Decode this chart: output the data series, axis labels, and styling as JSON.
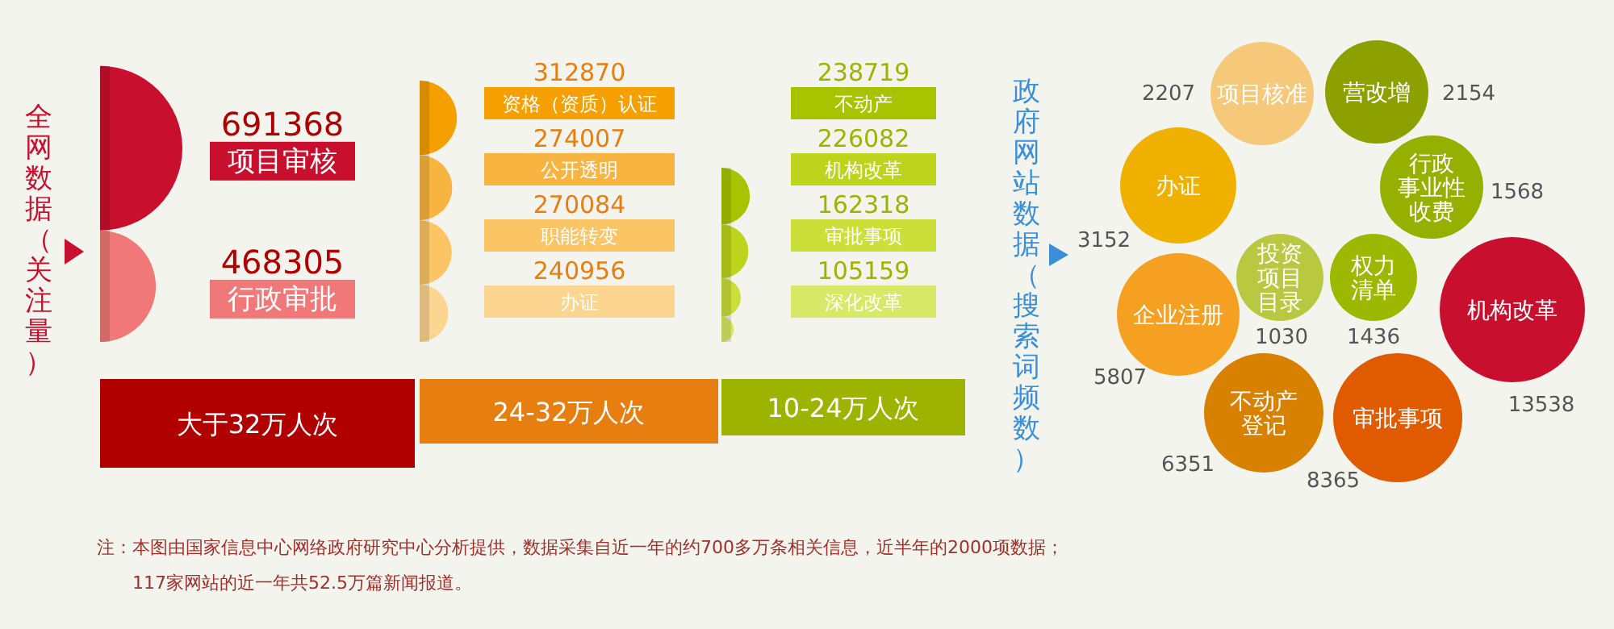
{
  "chart_data": [
    {
      "type": "other",
      "title": "全网数据（关注量）",
      "xlabel": "大于32万人次",
      "color": "#b00000",
      "categories": [
        "项目审核",
        "行政审批"
      ],
      "values": [
        691368,
        468305
      ],
      "colors": [
        "#c8102e",
        "#f07878"
      ],
      "data_labels": true
    },
    {
      "type": "other",
      "xlabel": "24-32万人次",
      "color": "#e67e10",
      "categories": [
        "资格（资质）认证",
        "公开透明",
        "职能转变",
        "办证"
      ],
      "values": [
        312870,
        274007,
        270084,
        240956
      ],
      "colors": [
        "#f5a000",
        "#f8b440",
        "#fbc565",
        "#fcd590"
      ],
      "data_labels": true
    },
    {
      "type": "other",
      "xlabel": "10-24万人次",
      "color": "#9cb400",
      "categories": [
        "不动产",
        "机构改革",
        "审批事项",
        "深化改革"
      ],
      "values": [
        238719,
        226082,
        162318,
        105159
      ],
      "colors": [
        "#a8c400",
        "#bcd41c",
        "#cadf38",
        "#d8e968"
      ],
      "data_labels": true
    },
    {
      "type": "other",
      "title": "政府网站数据（搜索词频数）",
      "categories": [
        "项目核准",
        "营改增",
        "行政事业性收费",
        "办证",
        "投资项目目录",
        "权力清单",
        "机构改革",
        "企业注册",
        "不动产登记",
        "审批事项"
      ],
      "values": [
        2207,
        2154,
        1568,
        3152,
        1030,
        1436,
        13538,
        5807,
        6351,
        8365
      ],
      "colors": [
        "#f5c87a",
        "#8ca000",
        "#96b000",
        "#f0b000",
        "#b8c840",
        "#9cb800",
        "#c8102e",
        "#f5a020",
        "#d88000",
        "#e05a00"
      ],
      "data_labels": true,
      "annotations": [
        "注：本图由国家信息中心网络政府研究中心分析提供，数据采集自近一年的约700多万条相关信息，近半年的2000项数据；",
        "117家网站的近一年共52.5万篇新闻报道。"
      ]
    }
  ]
}
